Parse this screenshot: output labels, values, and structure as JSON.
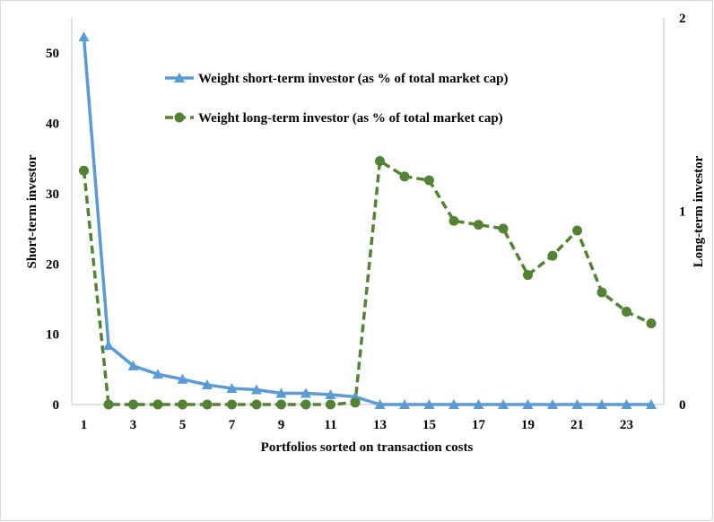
{
  "chart_data": {
    "type": "line",
    "title": "",
    "xlabel": "Portfolios sorted on transaction costs",
    "ylabel_left": "Short-term investor",
    "ylabel_right": "Long-term investor",
    "ylim_left": [
      0,
      55
    ],
    "ylim_right": [
      0,
      2
    ],
    "yticks_left": [
      "0",
      "10",
      "20",
      "30",
      "40",
      "50"
    ],
    "yticks_right": [
      "0",
      "1",
      "2"
    ],
    "x": [
      1,
      2,
      3,
      4,
      5,
      6,
      7,
      8,
      9,
      10,
      11,
      12,
      13,
      14,
      15,
      16,
      17,
      18,
      19,
      20,
      21,
      22,
      23,
      24
    ],
    "xtick_labels": [
      "1",
      "3",
      "5",
      "7",
      "9",
      "11",
      "13",
      "15",
      "17",
      "19",
      "21",
      "23"
    ],
    "grid": false,
    "legend_position": "top-center",
    "series": [
      {
        "name": "Weight short-term investor (as % of total market cap)",
        "axis": "left",
        "color": "#5b9bd5",
        "marker": "triangle",
        "line": "solid",
        "values": [
          52.3,
          8.4,
          5.5,
          4.3,
          3.6,
          2.8,
          2.3,
          2.1,
          1.6,
          1.6,
          1.4,
          1.1,
          0,
          0,
          0,
          0,
          0,
          0,
          0,
          0,
          0,
          0,
          0,
          0
        ]
      },
      {
        "name": "Weight long-term investor (as % of total market cap)",
        "axis": "right",
        "color": "#548235",
        "marker": "circle",
        "line": "dashed",
        "values": [
          1.21,
          0,
          0,
          0,
          0,
          0,
          0,
          0,
          0,
          0,
          0,
          0.01,
          1.26,
          1.18,
          1.16,
          0.95,
          0.93,
          0.91,
          0.67,
          0.77,
          0.9,
          0.58,
          0.48,
          0.42
        ]
      }
    ]
  }
}
